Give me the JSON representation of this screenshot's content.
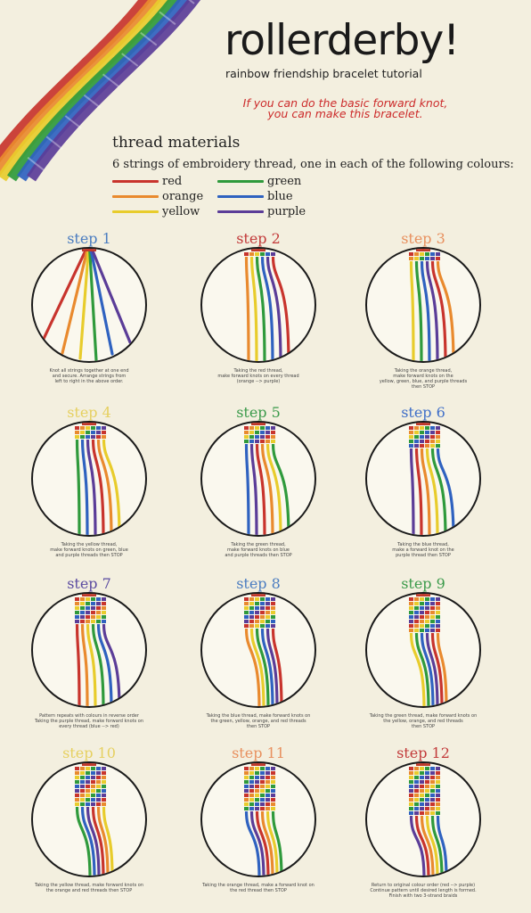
{
  "title": "rollerderby!",
  "subtitle": "rainbow friendship bracelet tutorial",
  "note": {
    "line1": "If you can do the basic forward knot,",
    "line2": "you can make this bracelet."
  },
  "materials": {
    "heading": "thread materials",
    "description": "6 strings of embroidery thread, one in each of the following colours:",
    "items": [
      {
        "label": "red",
        "color": "#c8342d"
      },
      {
        "label": "orange",
        "color": "#e98a2e"
      },
      {
        "label": "yellow",
        "color": "#e8cc2c"
      },
      {
        "label": "green",
        "color": "#2f9a3c"
      },
      {
        "label": "blue",
        "color": "#2f62c0"
      },
      {
        "label": "purple",
        "color": "#5b3d98"
      }
    ]
  },
  "steps": [
    {
      "label": "step 1",
      "color": "#4a7cc0",
      "knots": 0,
      "caption": [
        "Knot all strings together at one end",
        "and secure. Arrange strings from",
        "left to right in the above order."
      ]
    },
    {
      "label": "step 2",
      "color": "#c23a3a",
      "knots": 1,
      "caption": [
        "Taking the red thread,",
        "make forward knots on every thread",
        "(orange --> purple)"
      ]
    },
    {
      "label": "step 3",
      "color": "#e8905e",
      "knots": 2,
      "caption": [
        "Taking the orange thread,",
        "make forward knots on the",
        "yellow, green, blue, and purple threads",
        "then STOP"
      ]
    },
    {
      "label": "step 4",
      "color": "#e6d060",
      "knots": 3,
      "caption": [
        "Taking the yellow thread,",
        "make forward knots on green, blue",
        "and purple threads then STOP"
      ]
    },
    {
      "label": "step 5",
      "color": "#3a9a4a",
      "knots": 4,
      "caption": [
        "Taking the green thread,",
        "make forward knots on blue",
        "and purple threads then STOP"
      ]
    },
    {
      "label": "step 6",
      "color": "#3e6ec8",
      "knots": 5,
      "caption": [
        "Taking the blue thread,",
        "make a forward knot on the",
        "purple thread then STOP"
      ]
    },
    {
      "label": "step 7",
      "color": "#5a4aa0",
      "knots": 6,
      "caption": [
        "Pattern repeats with colours in reverse order",
        "Taking the purple thread, make forward knots on",
        "every thread (blue --> red)"
      ]
    },
    {
      "label": "step 8",
      "color": "#4a7cc0",
      "knots": 7,
      "caption": [
        "Taking the blue thread, make forward knots on",
        "the green, yellow, orange, and red threads",
        "then STOP"
      ]
    },
    {
      "label": "step 9",
      "color": "#3a9a4a",
      "knots": 8,
      "caption": [
        "Taking the green thread, make forward knots on",
        "the yellow, orange, and red threads",
        "then STOP"
      ]
    },
    {
      "label": "step 10",
      "color": "#e6d060",
      "knots": 9,
      "caption": [
        "Taking the yellow thread, make forward knots on",
        "the orange and red threads then STOP"
      ]
    },
    {
      "label": "step 11",
      "color": "#e8905e",
      "knots": 10,
      "caption": [
        "Taking the orange thread, make a forward knot on",
        "the red thread then STOP"
      ]
    },
    {
      "label": "step 12",
      "color": "#c23a3a",
      "knots": 11,
      "caption": [
        "Return to original colour order (red --> purple)",
        "Continue pattern until desired length is formed.",
        "Finish with two 3-strand braids"
      ]
    }
  ]
}
